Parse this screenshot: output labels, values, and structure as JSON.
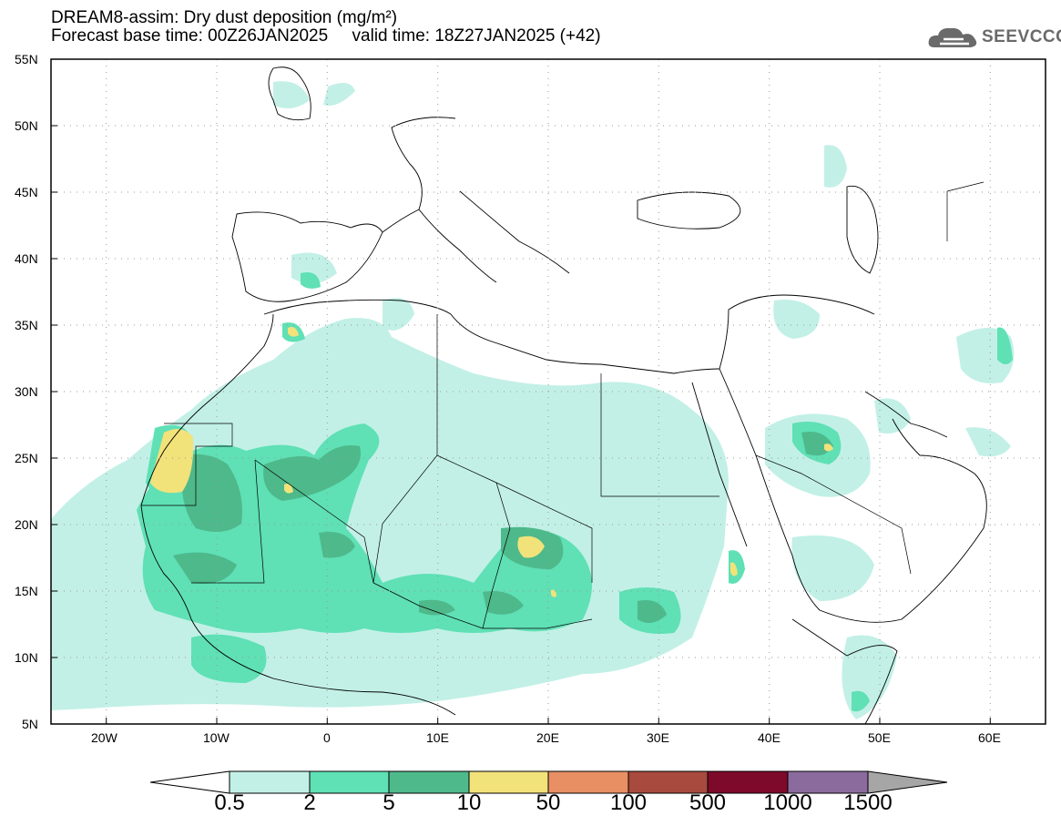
{
  "header": {
    "title_line1": "DREAM8-assim: Dry dust deposition (mg/m²)",
    "title_line2": "Forecast base time: 00Z26JAN2025     valid time: 18Z27JAN2025 (+42)"
  },
  "logo": {
    "text": "SEEVCCC",
    "icon": "cloud-icon"
  },
  "map": {
    "lon_range": [
      -25,
      65
    ],
    "lat_range": [
      5,
      55
    ],
    "lat_labels": [
      "55N",
      "50N",
      "45N",
      "40N",
      "35N",
      "30N",
      "25N",
      "20N",
      "15N",
      "10N",
      "5N"
    ],
    "lon_labels": [
      "20W",
      "10W",
      "0",
      "10E",
      "20E",
      "30E",
      "40E",
      "50E",
      "60E"
    ],
    "gridlines": "dotted"
  },
  "colorbar": {
    "labels": [
      "0.5",
      "2",
      "5",
      "10",
      "50",
      "100",
      "500",
      "1000",
      "1500"
    ],
    "colors": [
      "#c2f0e6",
      "#5fe0b5",
      "#4eb98b",
      "#f2e27a",
      "#e88f63",
      "#a84a3e",
      "#7d0a2a",
      "#8b6b9e"
    ],
    "under_color": "#ffffff",
    "over_color": "#a6a6a6"
  }
}
